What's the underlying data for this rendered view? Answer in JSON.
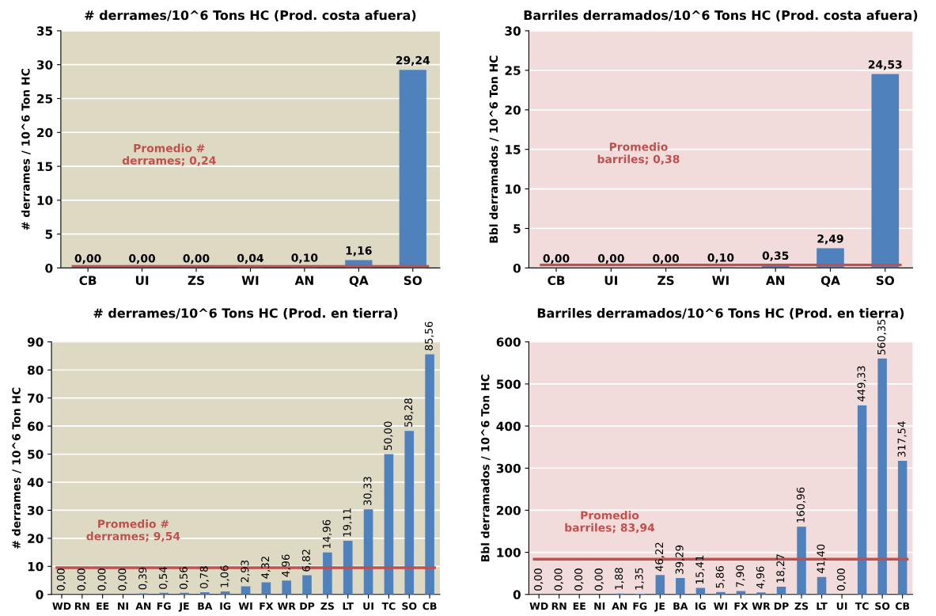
{
  "chart_data": [
    {
      "type": "bar",
      "title": "# derrames/10^6 Tons HC (Prod. costa afuera)",
      "ylabel": "# derrames / 10^6 Ton HC",
      "categories": [
        "CB",
        "UI",
        "ZS",
        "WI",
        "AN",
        "QA",
        "SO"
      ],
      "values": [
        0.0,
        0.0,
        0.0,
        0.04,
        0.1,
        1.16,
        29.24
      ],
      "value_labels": [
        "0,00",
        "0,00",
        "0,00",
        "0,04",
        "0,10",
        "1,16",
        "29,24"
      ],
      "color": "#4f81bd",
      "ylim": [
        0,
        35
      ],
      "yticks": [
        0,
        5,
        10,
        15,
        20,
        25,
        30,
        35
      ],
      "grid": "y",
      "ref_lines": [
        {
          "axis": "y",
          "value": 0.24,
          "label": "Promedio #\nderrames; 0,24",
          "color": "#c0504d"
        }
      ]
    },
    {
      "type": "bar",
      "title": "Barriles derramados/10^6 Tons HC (Prod. costa afuera)",
      "ylabel": "Bbl derramados / 10^6 Ton HC",
      "categories": [
        "CB",
        "UI",
        "ZS",
        "WI",
        "AN",
        "QA",
        "SO"
      ],
      "values": [
        0.0,
        0.0,
        0.0,
        0.1,
        0.35,
        2.49,
        24.53
      ],
      "value_labels": [
        "0,00",
        "0,00",
        "0,00",
        "0,10",
        "0,35",
        "2,49",
        "24,53"
      ],
      "color": "#4f81bd",
      "ylim": [
        0,
        30
      ],
      "yticks": [
        0,
        5,
        10,
        15,
        20,
        25,
        30
      ],
      "grid": "y",
      "ref_lines": [
        {
          "axis": "y",
          "value": 0.38,
          "label": "Promedio\nbarriles; 0,38",
          "color": "#c0504d"
        }
      ]
    },
    {
      "type": "bar",
      "title": "# derrames/10^6 Tons HC (Prod. en tierra)",
      "ylabel": "# derrames / 10^6 Ton HC",
      "categories": [
        "WD",
        "RN",
        "EE",
        "NI",
        "AN",
        "FG",
        "JE",
        "BA",
        "IG",
        "WI",
        "FX",
        "WR",
        "DP",
        "ZS",
        "LT",
        "UI",
        "TC",
        "SO",
        "CB"
      ],
      "values": [
        0.0,
        0.0,
        0.0,
        0.0,
        0.39,
        0.54,
        0.56,
        0.78,
        1.06,
        2.93,
        4.32,
        4.96,
        6.82,
        14.96,
        19.11,
        30.33,
        50.0,
        58.28,
        85.56
      ],
      "value_labels": [
        "0,00",
        "0,00",
        "0,00",
        "0,00",
        "0,39",
        "0,54",
        "0,56",
        "0,78",
        "1,06",
        "2,93",
        "4,32",
        "4,96",
        "6,82",
        "14,96",
        "19,11",
        "30,33",
        "50,00",
        "58,28",
        "85,56"
      ],
      "color": "#4f81bd",
      "ylim": [
        0,
        90
      ],
      "yticks": [
        0,
        10,
        20,
        30,
        40,
        50,
        60,
        70,
        80,
        90
      ],
      "grid": "y",
      "ref_lines": [
        {
          "axis": "y",
          "value": 9.54,
          "label": "Promedio #\nderrames; 9,54",
          "color": "#c0504d"
        }
      ]
    },
    {
      "type": "bar",
      "title": "Barriles derramados/10^6 Tons HC (Prod. en tierra)",
      "ylabel": "Bbl derramados / 10^6 Ton HC",
      "categories": [
        "WD",
        "RN",
        "EE",
        "NI",
        "AN",
        "FG",
        "JE",
        "BA",
        "IG",
        "WI",
        "FX",
        "WR",
        "DP",
        "ZS",
        "LT",
        "UI",
        "TC",
        "SO",
        "CB"
      ],
      "values": [
        0.0,
        0.0,
        0.0,
        0.0,
        1.88,
        1.35,
        46.22,
        39.29,
        15.41,
        5.86,
        7.9,
        4.96,
        18.27,
        160.96,
        41.4,
        0.0,
        449.33,
        560.35,
        317.54
      ],
      "value_labels": [
        "0,00",
        "0,00",
        "0,00",
        "0,00",
        "1,88",
        "1,35",
        "46,22",
        "39,29",
        "15,41",
        "5,86",
        "7,90",
        "4,96",
        "18,27",
        "160,96",
        "41,40",
        "0,00",
        "449,33",
        "560,35",
        "317,54"
      ],
      "color": "#4f81bd",
      "ylim": [
        0,
        600
      ],
      "yticks": [
        0,
        100,
        200,
        300,
        400,
        500,
        600
      ],
      "grid": "y",
      "ref_lines": [
        {
          "axis": "y",
          "value": 83.94,
          "label": "Promedio\nbarriles; 83,94",
          "color": "#c0504d"
        }
      ]
    }
  ]
}
